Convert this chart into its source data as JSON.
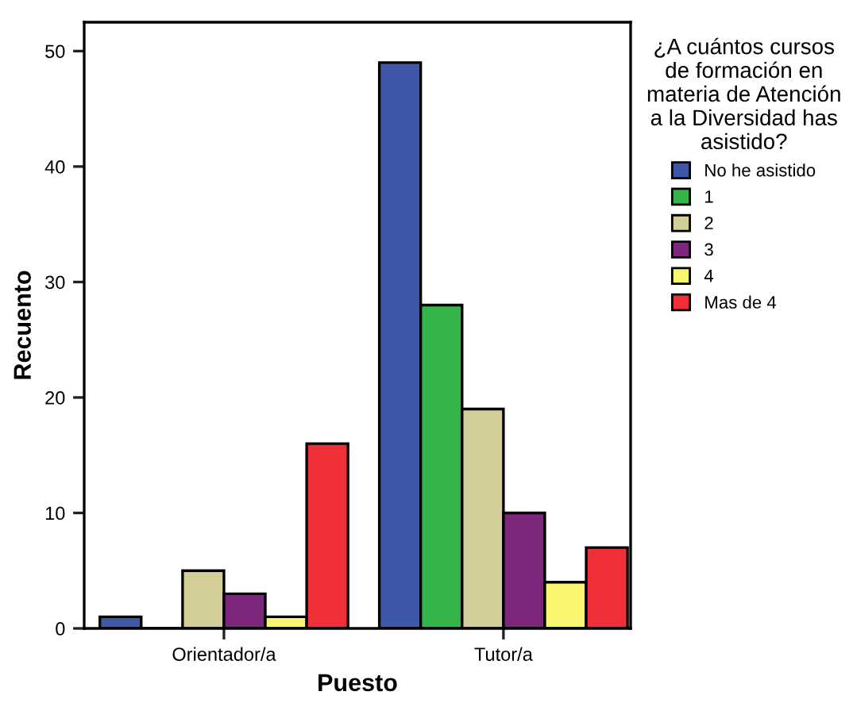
{
  "chart_data": {
    "type": "bar",
    "xlabel": "Puesto",
    "ylabel": "Recuento",
    "legend_title": "¿A cuántos cursos\nde formación en\nmateria de Atención\na la Diversidad has\nasistido?",
    "categories": [
      "Orientador/a",
      "Tutor/a"
    ],
    "series": [
      {
        "name": "No he asistido",
        "color": "#3f57a8",
        "values": [
          1,
          49
        ]
      },
      {
        "name": "1",
        "color": "#33b54a",
        "values": [
          0,
          28
        ]
      },
      {
        "name": "2",
        "color": "#d3ce98",
        "values": [
          5,
          19
        ]
      },
      {
        "name": "3",
        "color": "#7c277c",
        "values": [
          3,
          10
        ]
      },
      {
        "name": "4",
        "color": "#f8f56e",
        "values": [
          1,
          4
        ]
      },
      {
        "name": "Mas de 4",
        "color": "#ef3038",
        "values": [
          16,
          7
        ]
      }
    ],
    "ylim": [
      0,
      52.5
    ],
    "yticks": [
      0,
      10,
      20,
      30,
      40,
      50
    ],
    "grid": false,
    "legend": "right"
  }
}
